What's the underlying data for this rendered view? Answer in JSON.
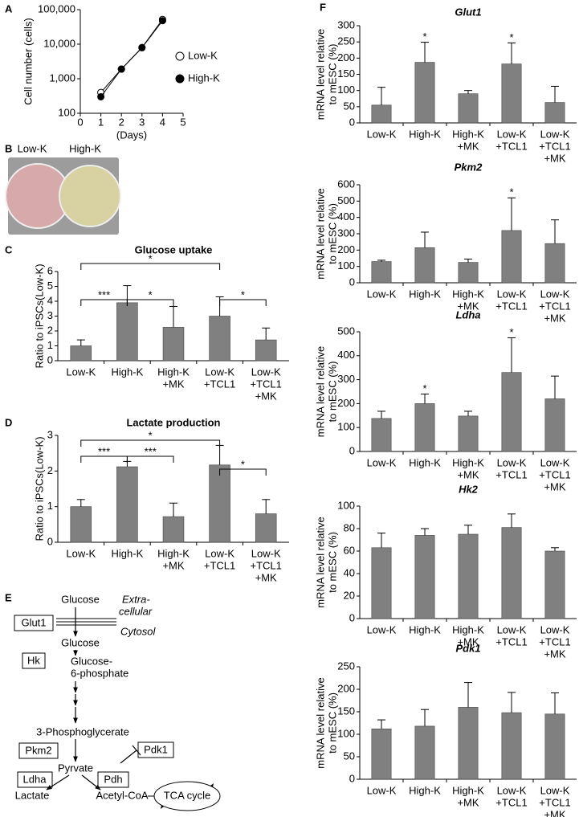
{
  "panel_labels": [
    "A",
    "B",
    "C",
    "D",
    "E",
    "F"
  ],
  "photo_labels": [
    "Low-K",
    "High-K"
  ],
  "chart_data": [
    {
      "type": "line",
      "xlabel": "(Days)",
      "ylabel": "Cell number (cells)",
      "x": [
        1,
        2,
        3,
        4
      ],
      "xlim": [
        0,
        5
      ],
      "xticks": [
        0,
        1,
        2,
        3,
        4,
        5
      ],
      "ylim": [
        100,
        100000
      ],
      "log_y": true,
      "yticks": [
        100,
        {
          "value": 1000,
          "label": "1,000"
        },
        {
          "value": 10000,
          "label": "10,000"
        },
        {
          "value": 100000,
          "label": "100,000"
        }
      ],
      "legend": "right",
      "series": [
        {
          "name": "Low-K",
          "color": "#ffffff",
          "values": [
            400,
            1900,
            8000,
            52000
          ]
        },
        {
          "name": "High-K",
          "color": "#000000",
          "values": [
            300,
            1900,
            7900,
            48000
          ]
        }
      ]
    },
    {
      "type": "bar",
      "title": "Glucose uptake",
      "ylabel": "Ratio to iPSCs(Low-K)",
      "categories": [
        [
          "Low-K"
        ],
        [
          "High-K"
        ],
        [
          "High-K",
          "+MK"
        ],
        [
          "Low-K",
          "+TCL1"
        ],
        [
          "Low-K",
          "+TCL1",
          "+MK"
        ]
      ],
      "values": [
        1.0,
        3.9,
        2.25,
        3.0,
        1.4
      ],
      "errors": [
        0.4,
        1.15,
        1.4,
        1.3,
        0.8
      ],
      "color": "#808080",
      "ylim": [
        0,
        6
      ],
      "yticks": [
        0,
        1,
        2,
        3,
        4,
        5,
        6
      ],
      "brackets": [
        "***",
        "*",
        "*",
        "*"
      ]
    },
    {
      "type": "bar",
      "title": "Lactate production",
      "ylabel": "Ratio to iPSCs(Low-K)",
      "categories": [
        [
          "Low-K"
        ],
        [
          "High-K"
        ],
        [
          "High-K",
          "+MK"
        ],
        [
          "Low-K",
          "+TCL1"
        ],
        [
          "Low-K",
          "+TCL1",
          "+MK"
        ]
      ],
      "values": [
        1.0,
        2.12,
        0.72,
        2.17,
        0.8
      ],
      "errors": [
        0.2,
        0.15,
        0.38,
        0.55,
        0.4
      ],
      "color": "#808080",
      "ylim": [
        0,
        3
      ],
      "yticks": [
        0,
        1,
        2,
        3
      ],
      "brackets": [
        "***",
        "***",
        "*",
        "*"
      ]
    },
    {
      "type": "bar",
      "title": "Glut1",
      "ylabel": [
        "mRNA level relative",
        "to mESC (%)"
      ],
      "categories": [
        [
          "Low-K"
        ],
        [
          "High-K"
        ],
        [
          "High-K",
          "+MK"
        ],
        [
          "Low-K",
          "+TCL1"
        ],
        [
          "Low-K",
          "+TCL1",
          "+MK"
        ]
      ],
      "values": [
        55,
        187,
        90,
        182,
        63
      ],
      "errors": [
        55,
        62,
        10,
        65,
        50
      ],
      "significance": [
        null,
        "*",
        null,
        "*",
        null
      ],
      "color": "#808080",
      "ylim": [
        0,
        300
      ],
      "yticks": [
        0,
        50,
        100,
        150,
        200,
        250,
        300
      ]
    },
    {
      "type": "bar",
      "title": "Pkm2",
      "ylabel": [
        "mRNA level relative",
        "to mESC (%)"
      ],
      "categories": [
        [
          "Low-K"
        ],
        [
          "High-K"
        ],
        [
          "High-K",
          "+MK"
        ],
        [
          "Low-K",
          "+TCL1"
        ],
        [
          "Low-K",
          "+TCL1",
          "+MK"
        ]
      ],
      "values": [
        130,
        215,
        125,
        320,
        240
      ],
      "errors": [
        8,
        95,
        20,
        200,
        145
      ],
      "significance": [
        null,
        null,
        null,
        "*",
        null
      ],
      "color": "#808080",
      "ylim": [
        0,
        600
      ],
      "yticks": [
        0,
        100,
        200,
        300,
        400,
        500,
        600
      ]
    },
    {
      "type": "bar",
      "title": "Ldha",
      "ylabel": [
        "mRNA level relative",
        "to mESC (%)"
      ],
      "categories": [
        [
          "Low-K"
        ],
        [
          "High-K"
        ],
        [
          "High-K",
          "+MK"
        ],
        [
          "Low-K",
          "+TCL1"
        ],
        [
          "Low-K",
          "+TCL1",
          "+MK"
        ]
      ],
      "values": [
        138,
        200,
        148,
        330,
        220
      ],
      "errors": [
        30,
        40,
        20,
        145,
        95
      ],
      "significance": [
        null,
        "*",
        null,
        "*",
        null
      ],
      "color": "#808080",
      "ylim": [
        0,
        500
      ],
      "yticks": [
        0,
        100,
        200,
        300,
        400,
        500
      ]
    },
    {
      "type": "bar",
      "title": "Hk2",
      "ylabel": [
        "mRNA level relative",
        "to mESC (%)"
      ],
      "categories": [
        [
          "Low-K"
        ],
        [
          "High-K"
        ],
        [
          "High-K",
          "+MK"
        ],
        [
          "Low-K",
          "+TCL1"
        ],
        [
          "Low-K",
          "+TCL1",
          "+MK"
        ]
      ],
      "values": [
        63,
        74,
        75,
        81,
        60
      ],
      "errors": [
        13,
        6,
        8,
        12,
        3
      ],
      "color": "#808080",
      "ylim": [
        0,
        100
      ],
      "yticks": [
        0,
        20,
        40,
        60,
        80,
        100
      ]
    },
    {
      "type": "bar",
      "title": "Pdk1",
      "ylabel": [
        "mRNA level relative",
        "to mESC (%)"
      ],
      "categories": [
        [
          "Low-K"
        ],
        [
          "High-K"
        ],
        [
          "High-K",
          "+MK"
        ],
        [
          "Low-K",
          "+TCL1"
        ],
        [
          "Low-K",
          "+TCL1",
          "+MK"
        ]
      ],
      "values": [
        112,
        118,
        160,
        148,
        145
      ],
      "errors": [
        20,
        37,
        55,
        45,
        47
      ],
      "color": "#808080",
      "ylim": [
        0,
        250
      ],
      "yticks": [
        0,
        50,
        100,
        150,
        200,
        250
      ]
    }
  ],
  "diagram": {
    "glucose_out": "Glucose",
    "extracellular": [
      "Extra-",
      "cellular"
    ],
    "cytosol": "Cytosol",
    "glut1": "Glut1",
    "glucose_in": "Glucose",
    "hk": "Hk",
    "g6p": [
      "Glucose-",
      "6-phosphate"
    ],
    "pg3": "3-Phosphoglycerate",
    "pkm2": "Pkm2",
    "pdk1": "Pdk1",
    "pyruvate": "Pyrvate",
    "ldha": "Ldha",
    "pdh": "Pdh",
    "lactate": "Lactate",
    "acetyl_coa": "Acetyl-CoA",
    "tca": "TCA cycle"
  }
}
